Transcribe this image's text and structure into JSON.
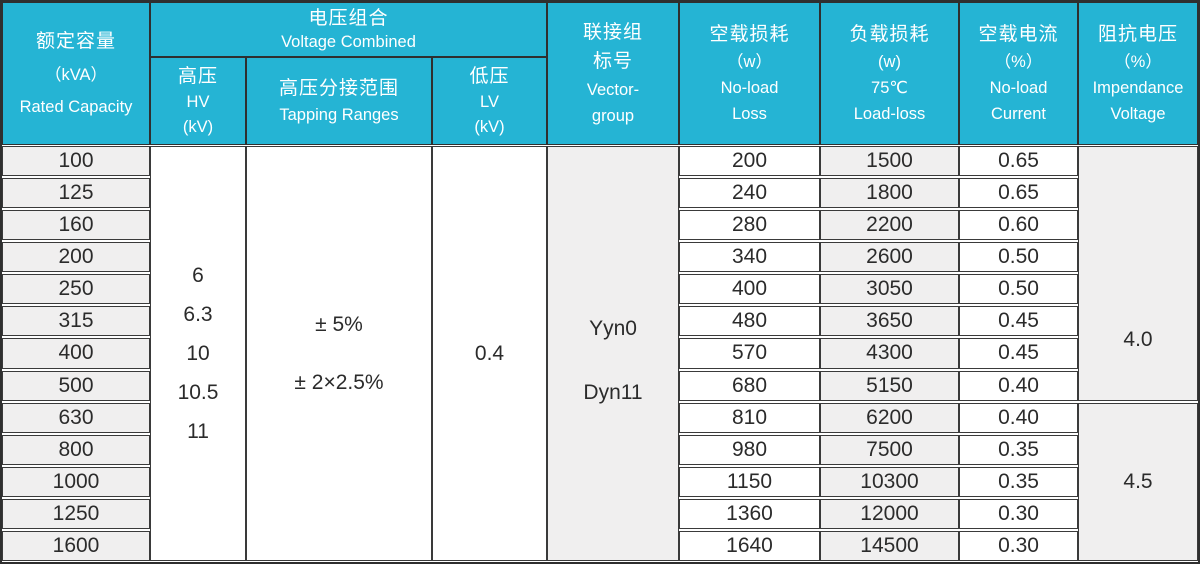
{
  "colors": {
    "header_bg": "#25b4d4",
    "cell_gray": "#f0efef",
    "border": "#3a3a3a"
  },
  "table": {
    "header": {
      "capacity": {
        "zh": "额定容量",
        "unit": "（kVA）",
        "en": "Rated Capacity"
      },
      "voltage_combined": {
        "zh": "电压组合",
        "en": "Voltage Combined"
      },
      "hv": {
        "zh": "高压",
        "en": "HV",
        "unit": "(kV)"
      },
      "tapping": {
        "zh": "高压分接范围",
        "en": "Tapping Ranges"
      },
      "lv": {
        "zh": "低压",
        "en": "LV",
        "unit": "(kV)"
      },
      "vector": {
        "zh1": "联接组",
        "zh2": "标号",
        "en1": "Vector-",
        "en2": "group"
      },
      "noload_loss": {
        "zh": "空载损耗",
        "unit": "（w）",
        "en1": "No-load",
        "en2": "Loss"
      },
      "load_loss": {
        "zh": "负载损耗",
        "unit": "(w)",
        "temp": "75℃",
        "en": "Load-loss"
      },
      "noload_current": {
        "zh": "空载电流",
        "unit": "（%）",
        "en1": "No-load",
        "en2": "Current"
      },
      "impedance": {
        "zh": "阻抗电压",
        "unit": "（%）",
        "en1": "Impendance",
        "en2": "Voltage"
      }
    },
    "merged": {
      "hv_values": [
        "6",
        "6.3",
        "10",
        "10.5",
        "11"
      ],
      "tapping_values": [
        "± 5%",
        "± 2×2.5%"
      ],
      "lv_value": "0.4",
      "vector_values": [
        "Yyn0",
        "Dyn11"
      ],
      "impedance_values": [
        "4.0",
        "4.5"
      ]
    },
    "rows": [
      {
        "capacity": "100",
        "noload_loss": "200",
        "load_loss": "1500",
        "noload_current": "0.65"
      },
      {
        "capacity": "125",
        "noload_loss": "240",
        "load_loss": "1800",
        "noload_current": "0.65"
      },
      {
        "capacity": "160",
        "noload_loss": "280",
        "load_loss": "2200",
        "noload_current": "0.60"
      },
      {
        "capacity": "200",
        "noload_loss": "340",
        "load_loss": "2600",
        "noload_current": "0.50"
      },
      {
        "capacity": "250",
        "noload_loss": "400",
        "load_loss": "3050",
        "noload_current": "0.50"
      },
      {
        "capacity": "315",
        "noload_loss": "480",
        "load_loss": "3650",
        "noload_current": "0.45"
      },
      {
        "capacity": "400",
        "noload_loss": "570",
        "load_loss": "4300",
        "noload_current": "0.45"
      },
      {
        "capacity": "500",
        "noload_loss": "680",
        "load_loss": "5150",
        "noload_current": "0.40"
      },
      {
        "capacity": "630",
        "noload_loss": "810",
        "load_loss": "6200",
        "noload_current": "0.40"
      },
      {
        "capacity": "800",
        "noload_loss": "980",
        "load_loss": "7500",
        "noload_current": "0.35"
      },
      {
        "capacity": "1000",
        "noload_loss": "1150",
        "load_loss": "10300",
        "noload_current": "0.35"
      },
      {
        "capacity": "1250",
        "noload_loss": "1360",
        "load_loss": "12000",
        "noload_current": "0.30"
      },
      {
        "capacity": "1600",
        "noload_loss": "1640",
        "load_loss": "14500",
        "noload_current": "0.30"
      }
    ]
  }
}
